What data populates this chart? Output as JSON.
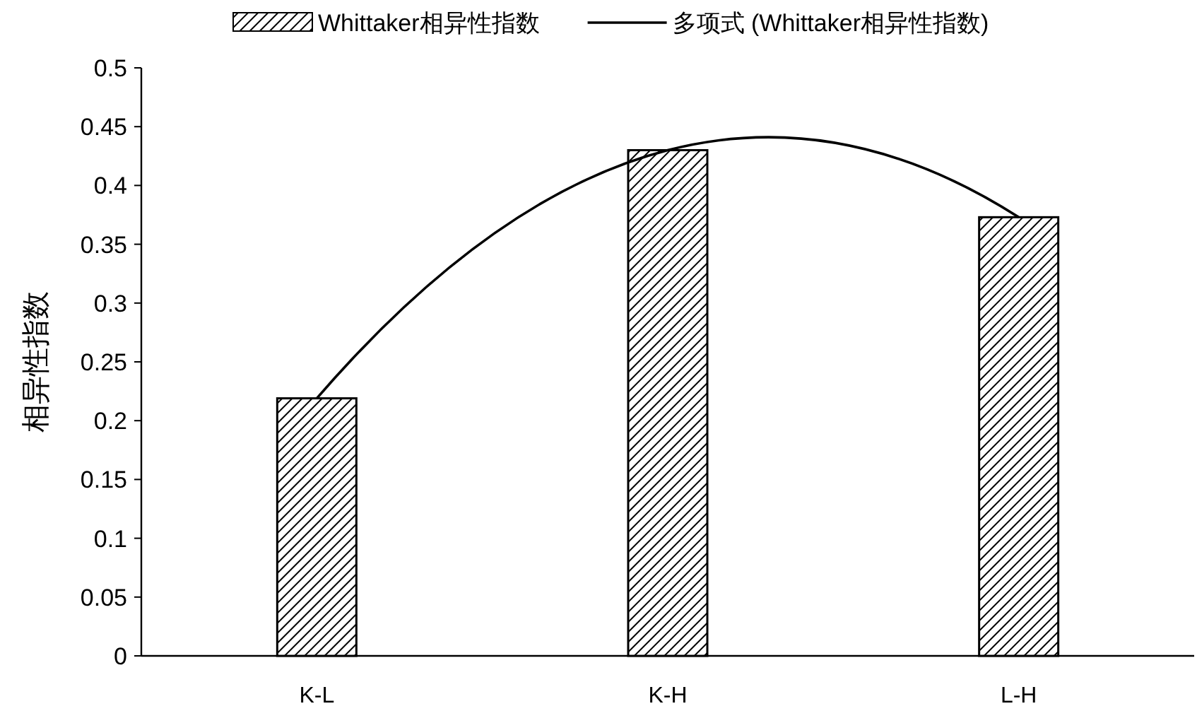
{
  "chart_data": {
    "type": "bar",
    "ylabel": "相异性指数",
    "categories": [
      "K-L",
      "K-H",
      "L-H"
    ],
    "series": [
      {
        "name": "Whittaker相异性指数",
        "color": "#000000",
        "values": [
          0.219,
          0.43,
          0.373
        ]
      },
      {
        "name": "多项式 (Whittaker相异性指数)",
        "type": "line",
        "color": "#000000",
        "values": [
          0.219,
          0.43,
          0.373
        ]
      }
    ],
    "ylim": [
      0,
      0.5
    ],
    "yticks": [
      0,
      0.05,
      0.1,
      0.15,
      0.2,
      0.25,
      0.3,
      0.35,
      0.4,
      0.45,
      0.5
    ],
    "grid": false,
    "legend": "top"
  }
}
